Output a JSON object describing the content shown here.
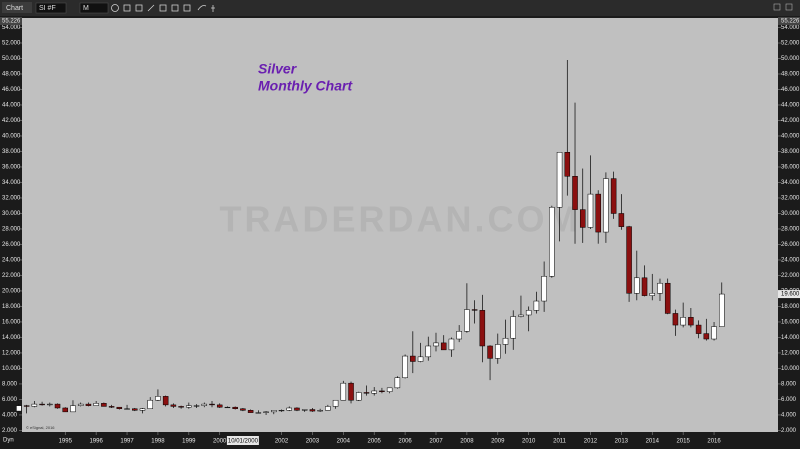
{
  "toolbar": {
    "tab": "Chart",
    "symbol": "SI #F",
    "interval": "M"
  },
  "chart_data": {
    "type": "candlestick",
    "title": "Silver",
    "subtitle": "Monthly Chart",
    "watermark": "TRADERDAN.COM",
    "copyright": "© eSignal, 2016",
    "corner_label": "Dyn",
    "up_color": "#ffffff",
    "down_color": "#8b1010",
    "wick_color": "#000000",
    "x_cursor": {
      "value": 2000.75,
      "label": "10/01/2000"
    },
    "last_price": {
      "value": 19.6,
      "label": "19.600"
    },
    "xlim": [
      1993.6,
      2018.07
    ],
    "xticks": [
      1995,
      1996,
      1997,
      1998,
      1999,
      2000,
      2002,
      2003,
      2004,
      2005,
      2006,
      2007,
      2008,
      2009,
      2010,
      2011,
      2012,
      2013,
      2014,
      2015,
      2016
    ],
    "ylim": [
      1.8,
      55.226
    ],
    "yticks": [
      {
        "value": 2,
        "label": "2.000"
      },
      {
        "value": 4,
        "label": "4.000"
      },
      {
        "value": 6,
        "label": "6.000"
      },
      {
        "value": 8,
        "label": "8.000"
      },
      {
        "value": 10,
        "label": "10.000"
      },
      {
        "value": 12,
        "label": "12.000"
      },
      {
        "value": 14,
        "label": "14.000"
      },
      {
        "value": 16,
        "label": "16.000"
      },
      {
        "value": 18,
        "label": "18.000"
      },
      {
        "value": 20,
        "label": "20.000"
      },
      {
        "value": 22,
        "label": "22.000"
      },
      {
        "value": 24,
        "label": "24.000"
      },
      {
        "value": 26,
        "label": "26.000"
      },
      {
        "value": 28,
        "label": "28.000"
      },
      {
        "value": 30,
        "label": "30.000"
      },
      {
        "value": 32,
        "label": "32.000"
      },
      {
        "value": 34,
        "label": "34.000"
      },
      {
        "value": 36,
        "label": "36.000"
      },
      {
        "value": 38,
        "label": "38.000"
      },
      {
        "value": 40,
        "label": "40.000"
      },
      {
        "value": 42,
        "label": "42.000"
      },
      {
        "value": 44,
        "label": "44.000"
      },
      {
        "value": 46,
        "label": "46.000"
      },
      {
        "value": 48,
        "label": "48.000"
      },
      {
        "value": 50,
        "label": "50.000"
      },
      {
        "value": 52,
        "label": "52.000"
      },
      {
        "value": 54,
        "label": "54.000"
      }
    ],
    "candles": [
      {
        "x": 1993.5,
        "open": 4.5,
        "high": 5.4,
        "low": 4.4,
        "close": 5.2
      },
      {
        "x": 1993.75,
        "open": 5.2,
        "high": 5.3,
        "low": 4.2,
        "close": 5.1
      },
      {
        "x": 1994.0,
        "open": 5.1,
        "high": 5.8,
        "low": 5.0,
        "close": 5.4
      },
      {
        "x": 1994.25,
        "open": 5.4,
        "high": 5.7,
        "low": 5.2,
        "close": 5.3
      },
      {
        "x": 1994.5,
        "open": 5.3,
        "high": 5.6,
        "low": 5.1,
        "close": 5.4
      },
      {
        "x": 1994.75,
        "open": 5.4,
        "high": 5.5,
        "low": 4.8,
        "close": 4.9
      },
      {
        "x": 1995.0,
        "open": 4.9,
        "high": 5.0,
        "low": 4.4,
        "close": 4.4
      },
      {
        "x": 1995.25,
        "open": 4.4,
        "high": 5.9,
        "low": 4.4,
        "close": 5.2
      },
      {
        "x": 1995.5,
        "open": 5.2,
        "high": 5.6,
        "low": 5.1,
        "close": 5.4
      },
      {
        "x": 1995.75,
        "open": 5.4,
        "high": 5.6,
        "low": 5.1,
        "close": 5.2
      },
      {
        "x": 1996.0,
        "open": 5.2,
        "high": 5.8,
        "low": 5.2,
        "close": 5.5
      },
      {
        "x": 1996.25,
        "open": 5.5,
        "high": 5.6,
        "low": 5.1,
        "close": 5.1
      },
      {
        "x": 1996.5,
        "open": 5.1,
        "high": 5.3,
        "low": 4.9,
        "close": 5.0
      },
      {
        "x": 1996.75,
        "open": 5.0,
        "high": 5.0,
        "low": 4.7,
        "close": 4.8
      },
      {
        "x": 1997.0,
        "open": 4.8,
        "high": 5.3,
        "low": 4.7,
        "close": 4.8
      },
      {
        "x": 1997.25,
        "open": 4.8,
        "high": 4.9,
        "low": 4.5,
        "close": 4.6
      },
      {
        "x": 1997.5,
        "open": 4.6,
        "high": 4.9,
        "low": 4.2,
        "close": 4.8
      },
      {
        "x": 1997.75,
        "open": 4.8,
        "high": 6.3,
        "low": 4.8,
        "close": 5.9
      },
      {
        "x": 1998.0,
        "open": 5.9,
        "high": 7.3,
        "low": 5.8,
        "close": 6.4
      },
      {
        "x": 1998.25,
        "open": 6.4,
        "high": 6.5,
        "low": 5.1,
        "close": 5.3
      },
      {
        "x": 1998.5,
        "open": 5.3,
        "high": 5.5,
        "low": 4.9,
        "close": 5.1
      },
      {
        "x": 1998.75,
        "open": 5.1,
        "high": 5.2,
        "low": 4.8,
        "close": 5.0
      },
      {
        "x": 1999.0,
        "open": 5.0,
        "high": 5.6,
        "low": 4.8,
        "close": 5.2
      },
      {
        "x": 1999.25,
        "open": 5.2,
        "high": 5.4,
        "low": 4.9,
        "close": 5.2
      },
      {
        "x": 1999.5,
        "open": 5.2,
        "high": 5.6,
        "low": 5.0,
        "close": 5.4
      },
      {
        "x": 1999.75,
        "open": 5.4,
        "high": 5.8,
        "low": 5.0,
        "close": 5.3
      },
      {
        "x": 2000.0,
        "open": 5.3,
        "high": 5.5,
        "low": 4.9,
        "close": 5.0
      },
      {
        "x": 2000.25,
        "open": 5.0,
        "high": 5.1,
        "low": 4.9,
        "close": 5.0
      },
      {
        "x": 2000.5,
        "open": 5.0,
        "high": 5.1,
        "low": 4.7,
        "close": 4.8
      },
      {
        "x": 2000.75,
        "open": 4.8,
        "high": 4.9,
        "low": 4.5,
        "close": 4.6
      },
      {
        "x": 2001.0,
        "open": 4.6,
        "high": 4.7,
        "low": 4.3,
        "close": 4.3
      },
      {
        "x": 2001.25,
        "open": 4.3,
        "high": 4.6,
        "low": 4.3,
        "close": 4.3
      },
      {
        "x": 2001.5,
        "open": 4.3,
        "high": 4.5,
        "low": 4.0,
        "close": 4.4
      },
      {
        "x": 2001.75,
        "open": 4.4,
        "high": 4.6,
        "low": 4.1,
        "close": 4.6
      },
      {
        "x": 2002.0,
        "open": 4.6,
        "high": 4.7,
        "low": 4.4,
        "close": 4.6
      },
      {
        "x": 2002.25,
        "open": 4.6,
        "high": 5.1,
        "low": 4.5,
        "close": 4.9
      },
      {
        "x": 2002.5,
        "open": 4.9,
        "high": 5.0,
        "low": 4.5,
        "close": 4.6
      },
      {
        "x": 2002.75,
        "open": 4.6,
        "high": 4.7,
        "low": 4.4,
        "close": 4.7
      },
      {
        "x": 2003.0,
        "open": 4.7,
        "high": 4.9,
        "low": 4.4,
        "close": 4.5
      },
      {
        "x": 2003.25,
        "open": 4.5,
        "high": 4.8,
        "low": 4.4,
        "close": 4.6
      },
      {
        "x": 2003.5,
        "open": 4.6,
        "high": 5.3,
        "low": 4.6,
        "close": 5.1
      },
      {
        "x": 2003.75,
        "open": 5.1,
        "high": 5.9,
        "low": 4.8,
        "close": 5.9
      },
      {
        "x": 2004.0,
        "open": 5.9,
        "high": 8.4,
        "low": 5.9,
        "close": 8.1
      },
      {
        "x": 2004.25,
        "open": 8.1,
        "high": 8.3,
        "low": 5.5,
        "close": 5.9
      },
      {
        "x": 2004.5,
        "open": 5.9,
        "high": 7.0,
        "low": 5.8,
        "close": 6.9
      },
      {
        "x": 2004.75,
        "open": 6.9,
        "high": 7.8,
        "low": 6.5,
        "close": 6.8
      },
      {
        "x": 2005.0,
        "open": 6.8,
        "high": 7.6,
        "low": 6.5,
        "close": 7.1
      },
      {
        "x": 2005.25,
        "open": 7.1,
        "high": 7.5,
        "low": 6.8,
        "close": 7.0
      },
      {
        "x": 2005.5,
        "open": 7.0,
        "high": 7.5,
        "low": 6.8,
        "close": 7.5
      },
      {
        "x": 2005.75,
        "open": 7.5,
        "high": 9.0,
        "low": 7.4,
        "close": 8.8
      },
      {
        "x": 2006.0,
        "open": 8.8,
        "high": 11.8,
        "low": 8.7,
        "close": 11.6
      },
      {
        "x": 2006.25,
        "open": 11.6,
        "high": 14.8,
        "low": 9.4,
        "close": 10.9
      },
      {
        "x": 2006.5,
        "open": 10.9,
        "high": 13.3,
        "low": 10.8,
        "close": 11.5
      },
      {
        "x": 2006.75,
        "open": 11.5,
        "high": 14.1,
        "low": 11.0,
        "close": 12.9
      },
      {
        "x": 2007.0,
        "open": 12.9,
        "high": 14.6,
        "low": 12.2,
        "close": 13.3
      },
      {
        "x": 2007.25,
        "open": 13.3,
        "high": 14.3,
        "low": 12.4,
        "close": 12.4
      },
      {
        "x": 2007.5,
        "open": 12.4,
        "high": 14.0,
        "low": 11.5,
        "close": 13.8
      },
      {
        "x": 2007.75,
        "open": 13.8,
        "high": 15.6,
        "low": 13.4,
        "close": 14.8
      },
      {
        "x": 2008.0,
        "open": 14.8,
        "high": 21.0,
        "low": 14.6,
        "close": 17.6
      },
      {
        "x": 2008.25,
        "open": 17.6,
        "high": 18.8,
        "low": 15.8,
        "close": 17.5
      },
      {
        "x": 2008.5,
        "open": 17.5,
        "high": 19.5,
        "low": 10.8,
        "close": 12.9
      },
      {
        "x": 2008.75,
        "open": 12.9,
        "high": 13.0,
        "low": 8.5,
        "close": 11.3
      },
      {
        "x": 2009.0,
        "open": 11.3,
        "high": 14.5,
        "low": 10.6,
        "close": 13.1
      },
      {
        "x": 2009.25,
        "open": 13.1,
        "high": 16.3,
        "low": 11.9,
        "close": 13.9
      },
      {
        "x": 2009.5,
        "open": 13.9,
        "high": 17.5,
        "low": 12.4,
        "close": 16.7
      },
      {
        "x": 2009.75,
        "open": 16.7,
        "high": 19.4,
        "low": 16.6,
        "close": 16.9
      },
      {
        "x": 2010.0,
        "open": 16.9,
        "high": 18.0,
        "low": 14.8,
        "close": 17.5
      },
      {
        "x": 2010.25,
        "open": 17.5,
        "high": 19.9,
        "low": 17.1,
        "close": 18.7
      },
      {
        "x": 2010.5,
        "open": 18.7,
        "high": 23.8,
        "low": 17.3,
        "close": 21.9
      },
      {
        "x": 2010.75,
        "open": 21.9,
        "high": 31.0,
        "low": 21.7,
        "close": 30.8
      },
      {
        "x": 2011.0,
        "open": 30.8,
        "high": 37.9,
        "low": 26.4,
        "close": 37.9
      },
      {
        "x": 2011.25,
        "open": 37.9,
        "high": 49.8,
        "low": 32.3,
        "close": 34.8
      },
      {
        "x": 2011.5,
        "open": 34.8,
        "high": 44.3,
        "low": 26.1,
        "close": 30.5
      },
      {
        "x": 2011.75,
        "open": 30.5,
        "high": 35.8,
        "low": 26.2,
        "close": 28.2
      },
      {
        "x": 2012.0,
        "open": 28.2,
        "high": 37.5,
        "low": 28.0,
        "close": 32.5
      },
      {
        "x": 2012.25,
        "open": 32.5,
        "high": 33.0,
        "low": 26.1,
        "close": 27.6
      },
      {
        "x": 2012.5,
        "open": 27.6,
        "high": 35.3,
        "low": 26.2,
        "close": 34.5
      },
      {
        "x": 2012.75,
        "open": 34.5,
        "high": 35.4,
        "low": 29.3,
        "close": 30.0
      },
      {
        "x": 2013.0,
        "open": 30.0,
        "high": 32.5,
        "low": 27.9,
        "close": 28.3
      },
      {
        "x": 2013.25,
        "open": 28.3,
        "high": 28.4,
        "low": 18.6,
        "close": 19.7
      },
      {
        "x": 2013.5,
        "open": 19.7,
        "high": 25.2,
        "low": 18.8,
        "close": 21.7
      },
      {
        "x": 2013.75,
        "open": 21.7,
        "high": 23.3,
        "low": 19.3,
        "close": 19.4
      },
      {
        "x": 2014.0,
        "open": 19.4,
        "high": 22.2,
        "low": 18.8,
        "close": 19.7
      },
      {
        "x": 2014.25,
        "open": 19.7,
        "high": 21.6,
        "low": 18.7,
        "close": 21.0
      },
      {
        "x": 2014.5,
        "open": 21.0,
        "high": 21.6,
        "low": 17.0,
        "close": 17.1
      },
      {
        "x": 2014.75,
        "open": 17.1,
        "high": 17.6,
        "low": 14.2,
        "close": 15.6
      },
      {
        "x": 2015.0,
        "open": 15.6,
        "high": 18.5,
        "low": 15.3,
        "close": 16.6
      },
      {
        "x": 2015.25,
        "open": 16.6,
        "high": 17.8,
        "low": 15.3,
        "close": 15.6
      },
      {
        "x": 2015.5,
        "open": 15.6,
        "high": 16.2,
        "low": 13.9,
        "close": 14.5
      },
      {
        "x": 2015.75,
        "open": 14.5,
        "high": 16.4,
        "low": 13.6,
        "close": 13.8
      },
      {
        "x": 2016.0,
        "open": 13.8,
        "high": 16.0,
        "low": 13.6,
        "close": 15.4
      },
      {
        "x": 2016.25,
        "open": 15.4,
        "high": 21.1,
        "low": 15.4,
        "close": 19.6
      }
    ]
  }
}
